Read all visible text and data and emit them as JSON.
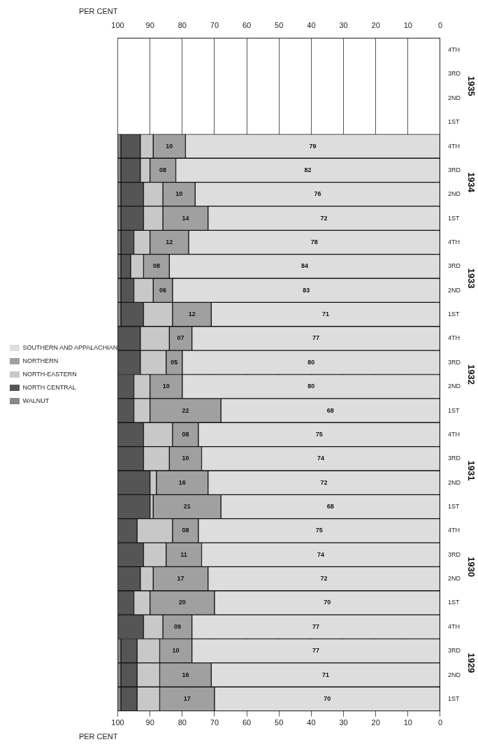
{
  "chart_data": {
    "type": "bar",
    "orientation": "horizontal",
    "stacked": true,
    "categories": [
      "4TH",
      "3RD",
      "2ND",
      "1ST",
      "4TH",
      "3RD",
      "2ND",
      "1ST",
      "4TH",
      "3RD",
      "2ND",
      "1ST",
      "4TH",
      "3RD",
      "2ND",
      "1ST",
      "4TH",
      "3RD",
      "2ND",
      "1ST",
      "4TH",
      "3RD",
      "2ND",
      "1ST",
      "4TH",
      "3RD",
      "2ND",
      "1ST"
    ],
    "series": [
      {
        "name": "SOUTHERN AND APPALACHIAN",
        "color": "#dddddd",
        "values": [
          null,
          null,
          null,
          null,
          79,
          82,
          76,
          72,
          78,
          84,
          83,
          71,
          77,
          80,
          80,
          68,
          75,
          74,
          72,
          68,
          75,
          74,
          72,
          70,
          77,
          77,
          71,
          70
        ],
        "value_labels": [
          null,
          null,
          null,
          null,
          "79",
          "82",
          "76",
          "72",
          "78",
          "84",
          "83",
          "71",
          "77",
          "80",
          "80",
          "68",
          "75",
          "74",
          "72",
          "68",
          "75",
          "74",
          "72",
          "70",
          "77",
          "77",
          "71",
          "70"
        ]
      },
      {
        "name": "NORTHERN",
        "color": "#a0a0a0",
        "values": [
          null,
          null,
          null,
          null,
          10,
          8,
          10,
          14,
          12,
          8,
          6,
          12,
          7,
          5,
          10,
          22,
          8,
          10,
          16,
          21,
          8,
          11,
          17,
          20,
          9,
          10,
          16,
          17
        ],
        "value_labels": [
          null,
          null,
          null,
          null,
          "10",
          "08",
          "10",
          "14",
          "12",
          "08",
          "06",
          "12",
          "07",
          "05",
          "10",
          "22",
          "08",
          "10",
          "16",
          "21",
          "08",
          "11",
          "17",
          "20",
          "09",
          "10",
          "16",
          "17"
        ]
      },
      {
        "name": "NORTH-EASTERN",
        "color": "#c8c8c8",
        "values": [
          null,
          null,
          null,
          null,
          4,
          3,
          6,
          6,
          5,
          4,
          6,
          9,
          9,
          8,
          5,
          5,
          9,
          8,
          2,
          1,
          11,
          7,
          4,
          5,
          6,
          7,
          7,
          7
        ]
      },
      {
        "name": "NORTH CENTRAL",
        "color": "#555555",
        "values": [
          null,
          null,
          null,
          null,
          6,
          6,
          7,
          7,
          4,
          3,
          4,
          7,
          7,
          7,
          5,
          5,
          8,
          8,
          10,
          10,
          6,
          8,
          7,
          5,
          8,
          5,
          5,
          5
        ]
      },
      {
        "name": "WALNUT",
        "color": "#888888",
        "values": [
          null,
          null,
          null,
          null,
          1,
          1,
          1,
          1,
          1,
          1,
          1,
          1,
          0,
          0,
          0,
          0,
          0,
          0,
          0,
          0,
          0,
          0,
          0,
          0,
          0,
          1,
          1,
          1
        ]
      }
    ],
    "xlim": [
      100,
      0
    ],
    "xticks": [
      100,
      90,
      80,
      70,
      60,
      50,
      40,
      30,
      20,
      10,
      0
    ],
    "x2lim": [
      100,
      0
    ],
    "x2ticks": [
      100,
      90,
      80,
      70,
      60,
      50,
      40,
      30,
      20,
      10,
      0
    ],
    "xlabel": "PER CENT",
    "x2label": "PER CENT",
    "annotations": [
      "1935",
      "1934",
      "1933",
      "1932",
      "1931",
      "1930",
      "1929"
    ],
    "grid": "x",
    "legend": "left"
  }
}
